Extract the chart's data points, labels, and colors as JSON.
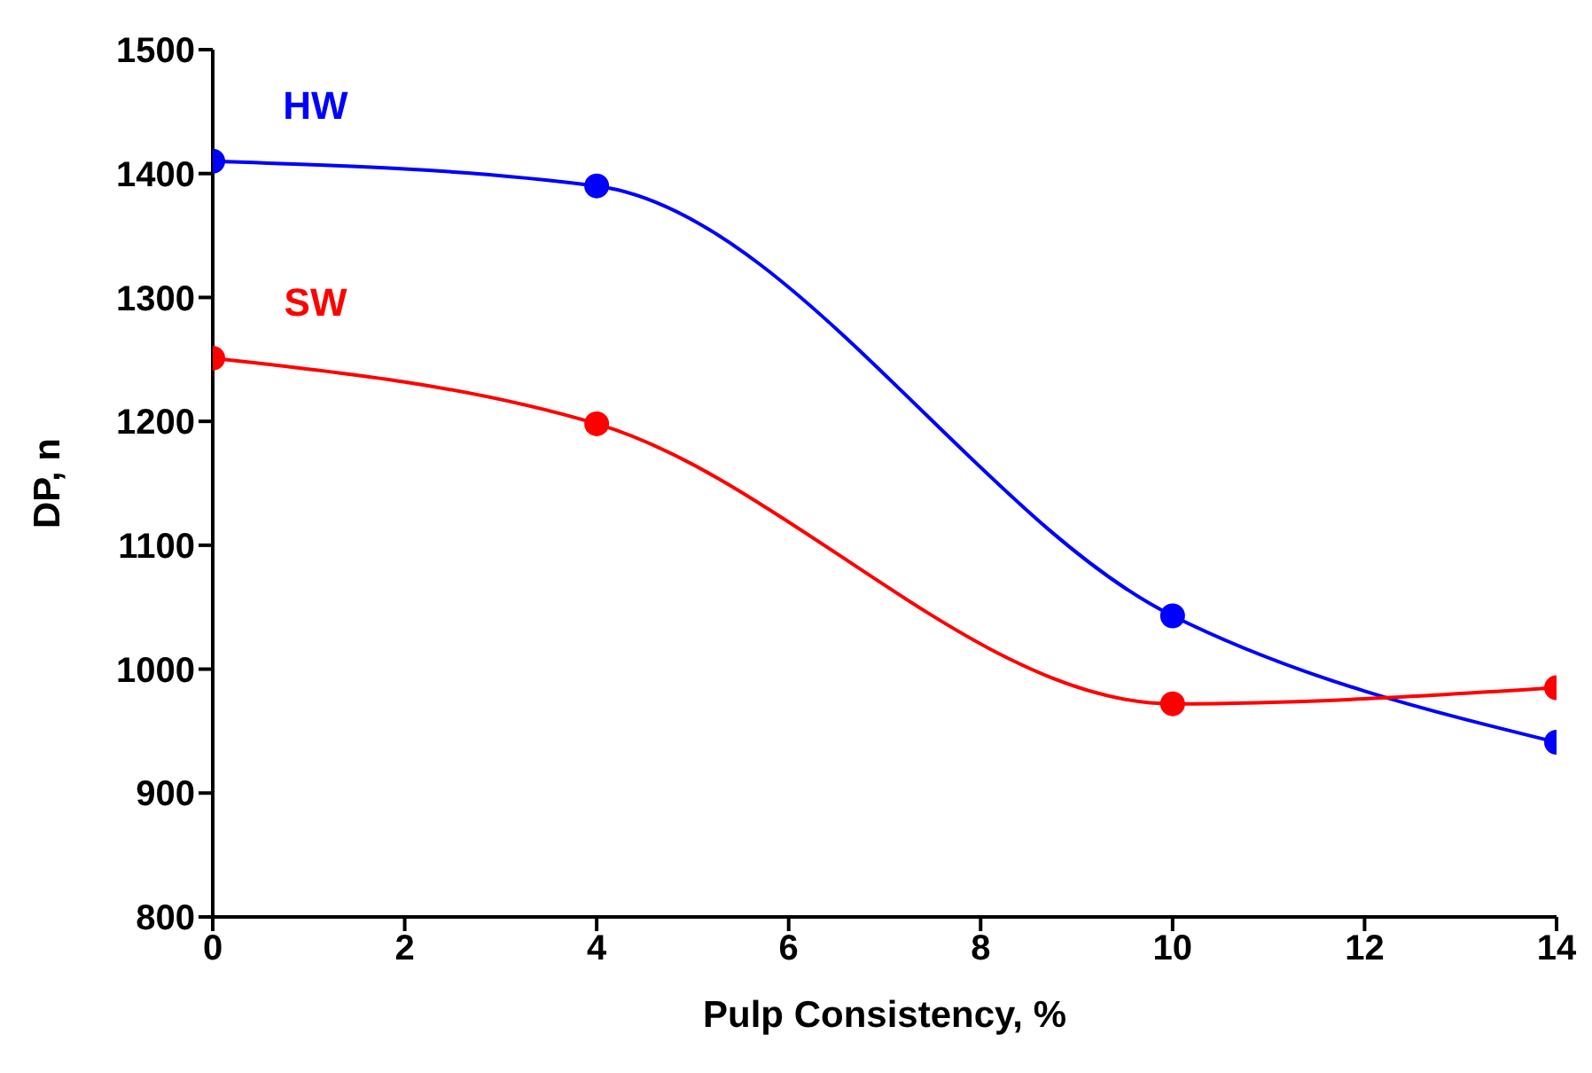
{
  "chart_data": {
    "type": "line",
    "xlabel": "Pulp Consistency, %",
    "ylabel": "DP, n",
    "xlim": [
      0,
      14
    ],
    "xticks": [
      0,
      2,
      4,
      6,
      8,
      10,
      12,
      14
    ],
    "ylim": [
      800,
      1500
    ],
    "yticks": [
      800,
      900,
      1000,
      1100,
      1200,
      1300,
      1400,
      1500
    ],
    "grid": false,
    "legend": false,
    "marker": "circle",
    "line_style": "solid",
    "series": [
      {
        "name": "HW",
        "color": "#0000ff",
        "x": [
          0,
          4,
          10,
          14
        ],
        "values": [
          1410,
          1390,
          1043,
          941
        ]
      },
      {
        "name": "SW",
        "color": "#ff0000",
        "x": [
          0,
          4,
          10,
          14
        ],
        "values": [
          1251,
          1198,
          972,
          985
        ]
      }
    ]
  }
}
